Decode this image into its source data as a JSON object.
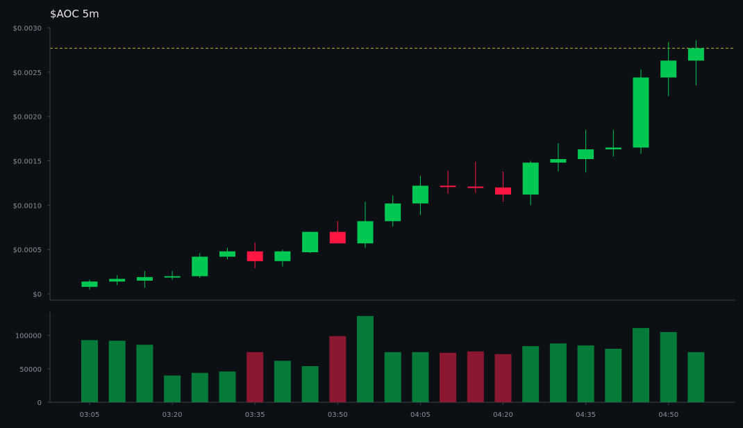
{
  "chart_data": {
    "type": "candlestick",
    "title": "$AOC 5m",
    "colors": {
      "background": "#0c0f14",
      "up": "#00c853",
      "down": "#ff1744",
      "volume_up": "#067a38",
      "volume_down": "#8b1730",
      "reference_line": "#c9b037",
      "axis": "#3b3f47",
      "tick_text": "#8a8f99"
    },
    "price_axis": {
      "ylim": [
        -7e-05,
        0.003
      ],
      "ticks": [
        0,
        0.0005,
        0.001,
        0.0015,
        0.002,
        0.0025,
        0.003
      ],
      "tick_labels": [
        "$0",
        "$0.0005",
        "$0.0010",
        "$0.0015",
        "$0.0020",
        "$0.0025",
        "$0.0030"
      ]
    },
    "reference_line": {
      "value": 0.00277,
      "style": "dashed"
    },
    "volume_axis": {
      "ylim": [
        0,
        135000
      ],
      "ticks": [
        0,
        50000,
        100000
      ],
      "tick_labels": [
        "0",
        "50000",
        "100000"
      ]
    },
    "x_axis": {
      "labels": [
        "03:05",
        "03:20",
        "03:35",
        "03:50",
        "04:05",
        "04:20",
        "04:35",
        "04:50"
      ],
      "label_indices": [
        0,
        3,
        6,
        9,
        12,
        15,
        18,
        21
      ]
    },
    "candles": [
      {
        "time": "03:05",
        "open": 8e-05,
        "high": 0.00016,
        "low": 5e-05,
        "close": 0.00014,
        "volume": 93000
      },
      {
        "time": "03:10",
        "open": 0.00014,
        "high": 0.00021,
        "low": 0.0001,
        "close": 0.00017,
        "volume": 92000
      },
      {
        "time": "03:15",
        "open": 0.00015,
        "high": 0.00026,
        "low": 7e-05,
        "close": 0.00019,
        "volume": 86000
      },
      {
        "time": "03:20",
        "open": 0.00019,
        "high": 0.00026,
        "low": 0.00016,
        "close": 0.0002,
        "volume": 40000
      },
      {
        "time": "03:25",
        "open": 0.0002,
        "high": 0.00046,
        "low": 0.00018,
        "close": 0.00042,
        "volume": 44000
      },
      {
        "time": "03:30",
        "open": 0.00042,
        "high": 0.00052,
        "low": 0.00039,
        "close": 0.00048,
        "volume": 46000
      },
      {
        "time": "03:35",
        "open": 0.00048,
        "high": 0.00058,
        "low": 0.00029,
        "close": 0.00037,
        "volume": 75000
      },
      {
        "time": "03:40",
        "open": 0.00037,
        "high": 0.0005,
        "low": 0.00031,
        "close": 0.00048,
        "volume": 62000
      },
      {
        "time": "03:45",
        "open": 0.00047,
        "high": 0.0007,
        "low": 0.00046,
        "close": 0.0007,
        "volume": 54000
      },
      {
        "time": "03:50",
        "open": 0.0007,
        "high": 0.00082,
        "low": 0.00057,
        "close": 0.00057,
        "volume": 99000
      },
      {
        "time": "03:55",
        "open": 0.00057,
        "high": 0.00104,
        "low": 0.00052,
        "close": 0.00082,
        "volume": 129000
      },
      {
        "time": "04:00",
        "open": 0.00082,
        "high": 0.00111,
        "low": 0.00076,
        "close": 0.00102,
        "volume": 75000
      },
      {
        "time": "04:05",
        "open": 0.00102,
        "high": 0.00133,
        "low": 0.00089,
        "close": 0.00122,
        "volume": 75000
      },
      {
        "time": "04:10",
        "open": 0.00122,
        "high": 0.00139,
        "low": 0.00113,
        "close": 0.00121,
        "volume": 74000
      },
      {
        "time": "04:15",
        "open": 0.00121,
        "high": 0.00149,
        "low": 0.00114,
        "close": 0.0012,
        "volume": 76000
      },
      {
        "time": "04:20",
        "open": 0.0012,
        "high": 0.00138,
        "low": 0.00104,
        "close": 0.00112,
        "volume": 72000
      },
      {
        "time": "04:25",
        "open": 0.00112,
        "high": 0.0015,
        "low": 0.001,
        "close": 0.00148,
        "volume": 84000
      },
      {
        "time": "04:30",
        "open": 0.00148,
        "high": 0.0017,
        "low": 0.00138,
        "close": 0.00152,
        "volume": 88000
      },
      {
        "time": "04:35",
        "open": 0.00152,
        "high": 0.00185,
        "low": 0.00137,
        "close": 0.00163,
        "volume": 85000
      },
      {
        "time": "04:40",
        "open": 0.00163,
        "high": 0.00185,
        "low": 0.00155,
        "close": 0.00165,
        "volume": 80000
      },
      {
        "time": "04:45",
        "open": 0.00165,
        "high": 0.00253,
        "low": 0.00158,
        "close": 0.00244,
        "volume": 111000
      },
      {
        "time": "04:50",
        "open": 0.00244,
        "high": 0.00284,
        "low": 0.00223,
        "close": 0.00263,
        "volume": 105000
      },
      {
        "time": "04:55",
        "open": 0.00263,
        "high": 0.00286,
        "low": 0.00235,
        "close": 0.00277,
        "volume": 75000
      }
    ]
  }
}
